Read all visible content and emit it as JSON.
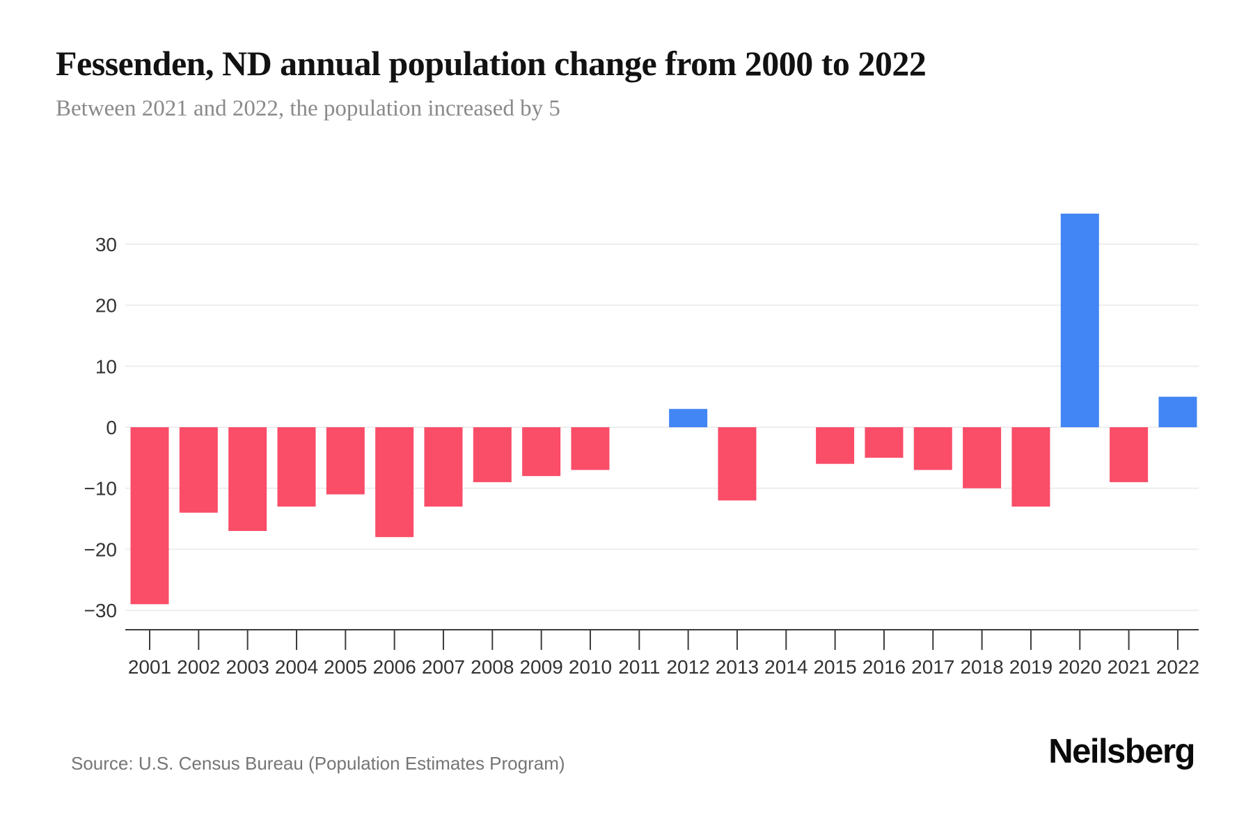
{
  "header": {
    "title": "Fessenden, ND annual population change from 2000 to 2022",
    "subtitle": "Between 2021 and 2022, the population increased by 5"
  },
  "footer": {
    "source": "Source: U.S. Census Bureau (Population Estimates Program)",
    "brand": "Neilsberg"
  },
  "colors": {
    "positive_bar": "#4285F4",
    "negative_bar": "#FA4D68",
    "gridline": "#ededed",
    "axis_line": "#3b3b3b",
    "tick_label": "#333333"
  },
  "chart_data": {
    "type": "bar",
    "title": "Fessenden, ND annual population change from 2000 to 2022",
    "xlabel": "",
    "ylabel": "",
    "categories": [
      "2001",
      "2002",
      "2003",
      "2004",
      "2005",
      "2006",
      "2007",
      "2008",
      "2009",
      "2010",
      "2011",
      "2012",
      "2013",
      "2014",
      "2015",
      "2016",
      "2017",
      "2018",
      "2019",
      "2020",
      "2021",
      "2022"
    ],
    "values": [
      -29,
      -14,
      -17,
      -13,
      -11,
      -18,
      -13,
      -9,
      -8,
      -7,
      0,
      3,
      -12,
      0,
      -6,
      -5,
      -7,
      -10,
      -13,
      35,
      -9,
      5
    ],
    "ylim": [
      -33,
      38
    ],
    "yticks": [
      30,
      20,
      10,
      0,
      -10,
      -20,
      -30
    ],
    "grid": true,
    "legend": false,
    "bar_color_rule": "blue if value > 0, pink-red if value < 0, no bar if value = 0"
  }
}
